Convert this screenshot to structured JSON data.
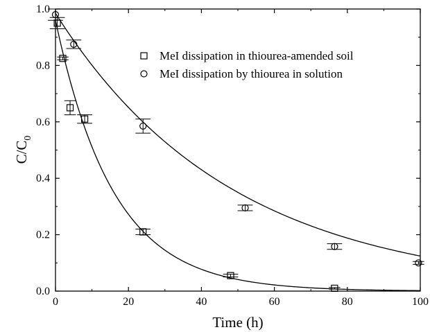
{
  "chart_data": {
    "type": "scatter",
    "xlabel": "Time (h)",
    "ylabel": {
      "main": "C/C",
      "sub": "0"
    },
    "xlim": [
      0,
      100
    ],
    "ylim": [
      0,
      1.0
    ],
    "xticks": [
      0,
      20,
      40,
      60,
      80,
      100
    ],
    "yticks": [
      0.0,
      0.2,
      0.4,
      0.6,
      0.8,
      1.0
    ],
    "xtick_labels": [
      "0",
      "20",
      "40",
      "60",
      "80",
      "100"
    ],
    "ytick_labels": [
      "0.0",
      "0.2",
      "0.4",
      "0.6",
      "0.8",
      "1.0"
    ],
    "grid": false,
    "legend_position": "top-right",
    "series": [
      {
        "name": "MeI dissipation in thiourea-amended soil",
        "marker": "square",
        "points": [
          {
            "x": 0.5,
            "y": 0.95,
            "yerr": 0.02,
            "xerr": 1.5
          },
          {
            "x": 2,
            "y": 0.825,
            "yerr": 0.005,
            "xerr": 1.0
          },
          {
            "x": 4,
            "y": 0.65,
            "yerr": 0.025,
            "xerr": 1.0
          },
          {
            "x": 8,
            "y": 0.61,
            "yerr": 0.015,
            "xerr": 1.5
          },
          {
            "x": 24,
            "y": 0.21,
            "yerr": 0.01,
            "xerr": 1.5
          },
          {
            "x": 48,
            "y": 0.055,
            "yerr": 0.005,
            "xerr": 1.5
          },
          {
            "x": 76.5,
            "y": 0.01,
            "yerr": 0.003,
            "xerr": 1.0
          }
        ],
        "fit": {
          "model": "exponential",
          "y0": 0.96,
          "k": 0.063
        }
      },
      {
        "name": "MeI dissipation by thiourea in solution",
        "marker": "circle",
        "points": [
          {
            "x": 0,
            "y": 0.98,
            "yerr": 0.02,
            "xerr": 1.5
          },
          {
            "x": 5,
            "y": 0.875,
            "yerr": 0.015,
            "xerr": 1.5
          },
          {
            "x": 24,
            "y": 0.585,
            "yerr": 0.025,
            "xerr": 1.5
          },
          {
            "x": 52,
            "y": 0.295,
            "yerr": 0.01,
            "xerr": 1.5
          },
          {
            "x": 76.5,
            "y": 0.158,
            "yerr": 0.01,
            "xerr": 1.5
          },
          {
            "x": 99.5,
            "y": 0.1,
            "yerr": 0.005,
            "xerr": 1.0
          }
        ],
        "fit": {
          "model": "exponential",
          "y0": 0.985,
          "k": 0.0207
        }
      }
    ]
  }
}
